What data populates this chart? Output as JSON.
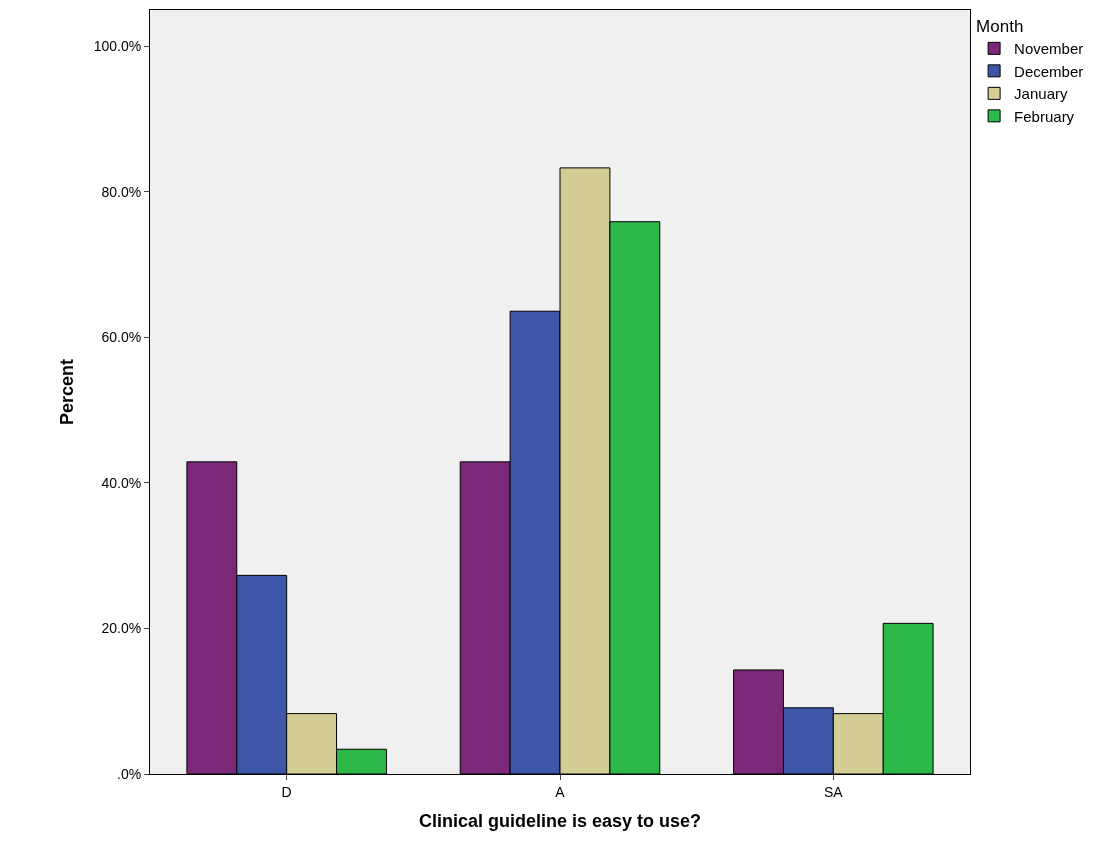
{
  "chart_data": {
    "type": "bar",
    "xlabel": "Clinical guideline is easy to use?",
    "ylabel": "Percent",
    "legend_title": "Month",
    "categories": [
      "D",
      "A",
      "SA"
    ],
    "series": [
      {
        "name": "November",
        "color": "#7b2878",
        "values": [
          42.9,
          42.9,
          14.3
        ]
      },
      {
        "name": "December",
        "color": "#3d56a8",
        "values": [
          27.3,
          63.6,
          9.1
        ]
      },
      {
        "name": "January",
        "color": "#d4cd96",
        "values": [
          8.3,
          83.3,
          8.3
        ]
      },
      {
        "name": "February",
        "color": "#2db84a",
        "values": [
          3.4,
          75.9,
          20.7
        ]
      }
    ],
    "ylim": [
      0,
      105
    ],
    "yticks": [
      {
        "value": 0,
        "label": ".0%"
      },
      {
        "value": 20,
        "label": "20.0%"
      },
      {
        "value": 40,
        "label": "40.0%"
      },
      {
        "value": 60,
        "label": "60.0%"
      },
      {
        "value": 80,
        "label": "80.0%"
      },
      {
        "value": 100,
        "label": "100.0%"
      }
    ],
    "grid": false,
    "legend": "top right"
  }
}
